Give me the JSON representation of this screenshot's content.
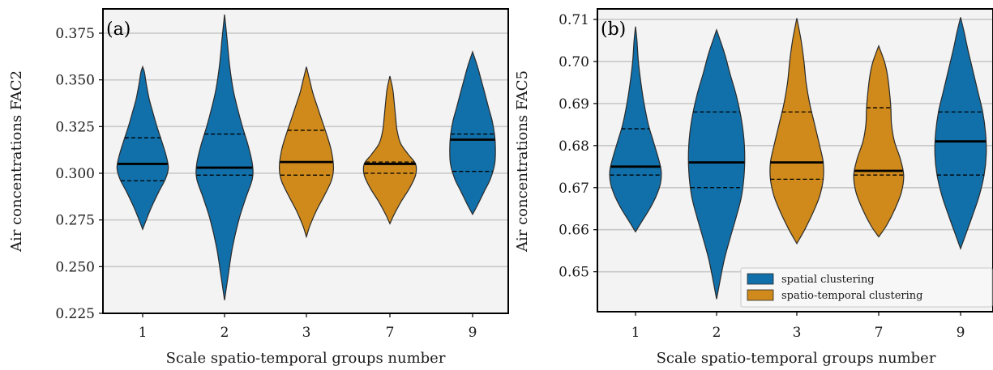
{
  "colors": {
    "spatial": "#1170aa",
    "spatiotemporal": "#cf8a1b",
    "panel_bg": "#f3f3f3",
    "grid": "#c8c8c8",
    "outline": "#2a2a2a"
  },
  "legend": {
    "items": [
      {
        "key": "spatial",
        "label": "spatial clustering"
      },
      {
        "key": "spatiotemporal",
        "label": "spatio-temporal clustering"
      }
    ]
  },
  "chart_data": [
    {
      "type": "violin",
      "panel_label": "(a)",
      "xlabel": "Scale spatio-temporal groups number",
      "ylabel": "Air concentrations FAC2",
      "categories": [
        "1",
        "2",
        "3",
        "7",
        "9"
      ],
      "ylim": [
        0.225,
        0.388
      ],
      "yticks": [
        0.225,
        0.25,
        0.275,
        0.3,
        0.325,
        0.35,
        0.375
      ],
      "ytick_labels": [
        "0.225",
        "0.250",
        "0.275",
        "0.300",
        "0.325",
        "0.350",
        "0.375"
      ],
      "grid": "horizontal",
      "violins": [
        {
          "category": "1",
          "group": "spatial",
          "min": 0.27,
          "max": 0.357,
          "q1": 0.296,
          "median": 0.305,
          "q3": 0.319,
          "profile": [
            [
              0.27,
              0
            ],
            [
              0.275,
              0.1
            ],
            [
              0.282,
              0.25
            ],
            [
              0.29,
              0.45
            ],
            [
              0.297,
              0.64
            ],
            [
              0.303,
              0.72
            ],
            [
              0.31,
              0.65
            ],
            [
              0.318,
              0.52
            ],
            [
              0.325,
              0.4
            ],
            [
              0.333,
              0.28
            ],
            [
              0.34,
              0.18
            ],
            [
              0.348,
              0.1
            ],
            [
              0.354,
              0.05
            ],
            [
              0.357,
              0
            ]
          ]
        },
        {
          "category": "2",
          "group": "spatial",
          "min": 0.232,
          "max": 0.385,
          "q1": 0.299,
          "median": 0.303,
          "q3": 0.321,
          "profile": [
            [
              0.232,
              0
            ],
            [
              0.245,
              0.1
            ],
            [
              0.26,
              0.22
            ],
            [
              0.275,
              0.4
            ],
            [
              0.287,
              0.6
            ],
            [
              0.297,
              0.78
            ],
            [
              0.305,
              0.78
            ],
            [
              0.315,
              0.66
            ],
            [
              0.325,
              0.5
            ],
            [
              0.335,
              0.36
            ],
            [
              0.345,
              0.24
            ],
            [
              0.358,
              0.14
            ],
            [
              0.372,
              0.07
            ],
            [
              0.385,
              0
            ]
          ]
        },
        {
          "category": "3",
          "group": "spatiotemporal",
          "min": 0.266,
          "max": 0.357,
          "q1": 0.299,
          "median": 0.306,
          "q3": 0.323,
          "profile": [
            [
              0.266,
              0
            ],
            [
              0.272,
              0.1
            ],
            [
              0.28,
              0.28
            ],
            [
              0.288,
              0.5
            ],
            [
              0.296,
              0.7
            ],
            [
              0.303,
              0.76
            ],
            [
              0.312,
              0.7
            ],
            [
              0.32,
              0.58
            ],
            [
              0.328,
              0.44
            ],
            [
              0.336,
              0.3
            ],
            [
              0.343,
              0.18
            ],
            [
              0.35,
              0.09
            ],
            [
              0.357,
              0
            ]
          ]
        },
        {
          "category": "7",
          "group": "spatiotemporal",
          "min": 0.273,
          "max": 0.352,
          "q1": 0.3,
          "median": 0.305,
          "q3": 0.306,
          "profile": [
            [
              0.273,
              0
            ],
            [
              0.278,
              0.12
            ],
            [
              0.285,
              0.32
            ],
            [
              0.292,
              0.55
            ],
            [
              0.299,
              0.72
            ],
            [
              0.305,
              0.72
            ],
            [
              0.31,
              0.52
            ],
            [
              0.316,
              0.3
            ],
            [
              0.323,
              0.2
            ],
            [
              0.33,
              0.16
            ],
            [
              0.338,
              0.12
            ],
            [
              0.345,
              0.08
            ],
            [
              0.352,
              0
            ]
          ]
        },
        {
          "category": "9",
          "group": "spatial",
          "min": 0.278,
          "max": 0.365,
          "q1": 0.301,
          "median": 0.318,
          "q3": 0.321,
          "profile": [
            [
              0.278,
              0
            ],
            [
              0.283,
              0.14
            ],
            [
              0.29,
              0.32
            ],
            [
              0.297,
              0.5
            ],
            [
              0.305,
              0.62
            ],
            [
              0.313,
              0.64
            ],
            [
              0.32,
              0.62
            ],
            [
              0.328,
              0.55
            ],
            [
              0.335,
              0.45
            ],
            [
              0.343,
              0.34
            ],
            [
              0.35,
              0.24
            ],
            [
              0.357,
              0.14
            ],
            [
              0.365,
              0
            ]
          ]
        }
      ]
    },
    {
      "type": "violin",
      "panel_label": "(b)",
      "xlabel": "Scale spatio-temporal groups number",
      "ylabel": "Air concentrations FAC5",
      "categories": [
        "1",
        "2",
        "3",
        "7",
        "9"
      ],
      "ylim": [
        0.6405,
        0.7125
      ],
      "yticks": [
        0.65,
        0.66,
        0.67,
        0.68,
        0.69,
        0.7,
        0.71
      ],
      "ytick_labels": [
        "0.65",
        "0.66",
        "0.67",
        "0.68",
        "0.69",
        "0.70",
        "0.71"
      ],
      "grid": "horizontal",
      "violins": [
        {
          "category": "1",
          "group": "spatial",
          "min": 0.6595,
          "max": 0.7083,
          "q1": 0.673,
          "median": 0.675,
          "q3": 0.684,
          "profile": [
            [
              0.6595,
              0
            ],
            [
              0.662,
              0.18
            ],
            [
              0.665,
              0.4
            ],
            [
              0.668,
              0.58
            ],
            [
              0.671,
              0.7
            ],
            [
              0.674,
              0.72
            ],
            [
              0.677,
              0.64
            ],
            [
              0.681,
              0.5
            ],
            [
              0.685,
              0.36
            ],
            [
              0.69,
              0.24
            ],
            [
              0.695,
              0.15
            ],
            [
              0.7,
              0.08
            ],
            [
              0.705,
              0.04
            ],
            [
              0.7083,
              0
            ]
          ]
        },
        {
          "category": "2",
          "group": "spatial",
          "min": 0.6435,
          "max": 0.7075,
          "q1": 0.67,
          "median": 0.676,
          "q3": 0.688,
          "profile": [
            [
              0.6435,
              0
            ],
            [
              0.648,
              0.1
            ],
            [
              0.653,
              0.22
            ],
            [
              0.658,
              0.38
            ],
            [
              0.663,
              0.55
            ],
            [
              0.668,
              0.7
            ],
            [
              0.674,
              0.78
            ],
            [
              0.68,
              0.78
            ],
            [
              0.686,
              0.7
            ],
            [
              0.692,
              0.55
            ],
            [
              0.697,
              0.38
            ],
            [
              0.702,
              0.22
            ],
            [
              0.7075,
              0
            ]
          ]
        },
        {
          "category": "3",
          "group": "spatiotemporal",
          "min": 0.6567,
          "max": 0.7103,
          "q1": 0.672,
          "median": 0.676,
          "q3": 0.688,
          "profile": [
            [
              0.6567,
              0
            ],
            [
              0.66,
              0.22
            ],
            [
              0.664,
              0.45
            ],
            [
              0.668,
              0.64
            ],
            [
              0.672,
              0.74
            ],
            [
              0.676,
              0.74
            ],
            [
              0.68,
              0.64
            ],
            [
              0.685,
              0.5
            ],
            [
              0.69,
              0.36
            ],
            [
              0.695,
              0.26
            ],
            [
              0.7,
              0.2
            ],
            [
              0.705,
              0.12
            ],
            [
              0.7103,
              0
            ]
          ]
        },
        {
          "category": "7",
          "group": "spatiotemporal",
          "min": 0.6583,
          "max": 0.7037,
          "q1": 0.673,
          "median": 0.674,
          "q3": 0.689,
          "profile": [
            [
              0.6583,
              0
            ],
            [
              0.661,
              0.22
            ],
            [
              0.665,
              0.46
            ],
            [
              0.669,
              0.64
            ],
            [
              0.673,
              0.7
            ],
            [
              0.677,
              0.6
            ],
            [
              0.681,
              0.44
            ],
            [
              0.685,
              0.36
            ],
            [
              0.689,
              0.34
            ],
            [
              0.693,
              0.3
            ],
            [
              0.697,
              0.24
            ],
            [
              0.7,
              0.16
            ],
            [
              0.7037,
              0
            ]
          ]
        },
        {
          "category": "9",
          "group": "spatial",
          "min": 0.6555,
          "max": 0.7105,
          "q1": 0.673,
          "median": 0.681,
          "q3": 0.688,
          "profile": [
            [
              0.6555,
              0
            ],
            [
              0.659,
              0.15
            ],
            [
              0.663,
              0.32
            ],
            [
              0.668,
              0.52
            ],
            [
              0.673,
              0.66
            ],
            [
              0.678,
              0.72
            ],
            [
              0.683,
              0.7
            ],
            [
              0.688,
              0.62
            ],
            [
              0.693,
              0.48
            ],
            [
              0.698,
              0.34
            ],
            [
              0.703,
              0.2
            ],
            [
              0.707,
              0.1
            ],
            [
              0.7105,
              0
            ]
          ]
        }
      ]
    }
  ]
}
